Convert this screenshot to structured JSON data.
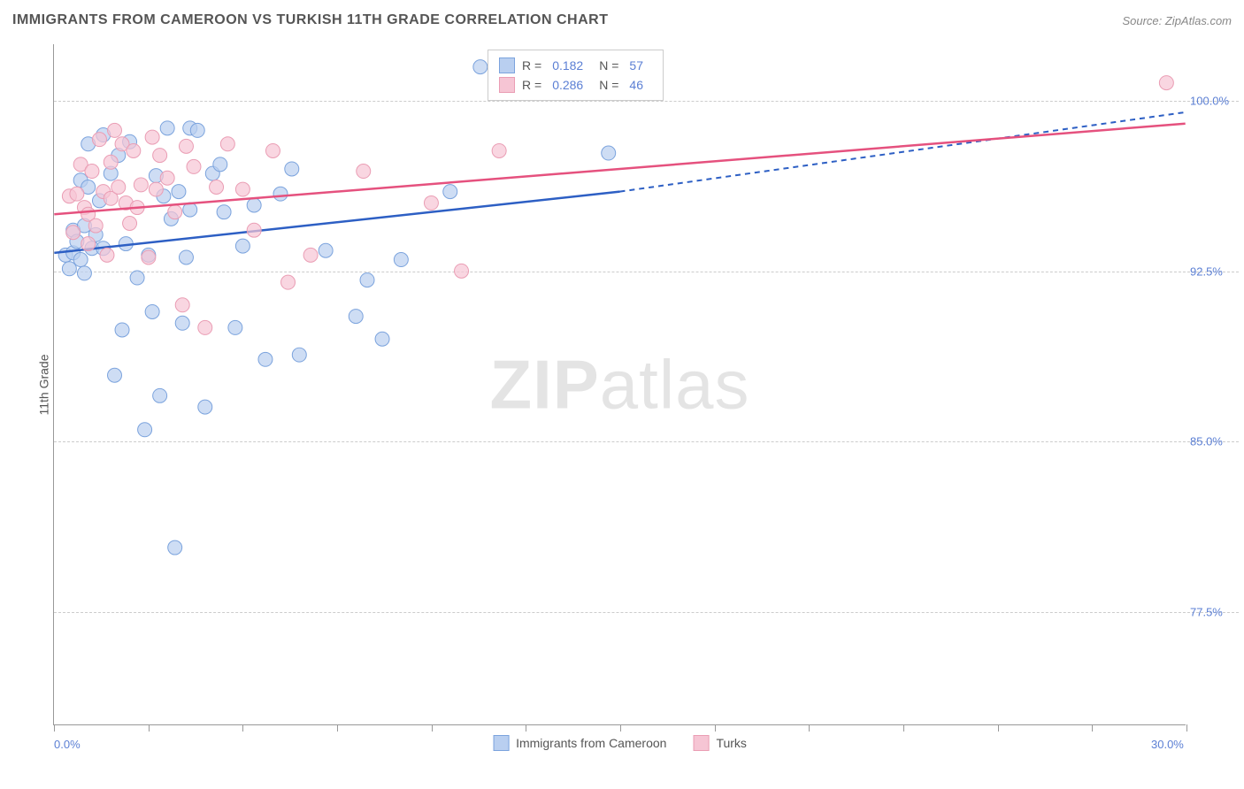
{
  "header": {
    "title": "IMMIGRANTS FROM CAMEROON VS TURKISH 11TH GRADE CORRELATION CHART",
    "source": "Source: ZipAtlas.com"
  },
  "chart": {
    "type": "scatter",
    "ylabel": "11th Grade",
    "xlim": [
      0,
      30
    ],
    "ylim": [
      72.5,
      102.5
    ],
    "xtick_positions": [
      0,
      2.5,
      5,
      7.5,
      10,
      12.5,
      15,
      17.5,
      20,
      22.5,
      25,
      27.5,
      30
    ],
    "xtick_labels": {
      "0": "0.0%",
      "30": "30.0%"
    },
    "ytick_positions": [
      77.5,
      85.0,
      92.5,
      100.0
    ],
    "ytick_labels": [
      "77.5%",
      "85.0%",
      "92.5%",
      "100.0%"
    ],
    "grid_color": "#cccccc",
    "background_color": "#ffffff",
    "axis_color": "#999999",
    "watermark": "ZIPatlas",
    "series": [
      {
        "name": "Immigrants from Cameroon",
        "color_fill": "#b9cff0",
        "color_stroke": "#7ba3dd",
        "trend_color": "#2d5fc4",
        "marker_radius": 8,
        "marker_opacity": 0.7,
        "R": "0.182",
        "N": "57",
        "trend": {
          "x1": 0,
          "y1": 93.3,
          "x2_solid": 15,
          "y2_solid": 96.0,
          "x2_dash": 30,
          "y2_dash": 99.5
        },
        "points": [
          [
            0.3,
            93.2
          ],
          [
            0.4,
            92.6
          ],
          [
            0.5,
            93.3
          ],
          [
            0.5,
            94.3
          ],
          [
            0.6,
            93.8
          ],
          [
            0.7,
            96.5
          ],
          [
            0.7,
            93.0
          ],
          [
            0.8,
            92.4
          ],
          [
            0.8,
            94.5
          ],
          [
            0.9,
            96.2
          ],
          [
            0.9,
            98.1
          ],
          [
            1.0,
            93.5
          ],
          [
            1.1,
            94.1
          ],
          [
            1.2,
            95.6
          ],
          [
            1.3,
            93.5
          ],
          [
            1.3,
            98.5
          ],
          [
            1.5,
            96.8
          ],
          [
            1.6,
            87.9
          ],
          [
            1.7,
            97.6
          ],
          [
            1.8,
            89.9
          ],
          [
            1.9,
            93.7
          ],
          [
            2.0,
            98.2
          ],
          [
            2.2,
            92.2
          ],
          [
            2.4,
            85.5
          ],
          [
            2.5,
            93.2
          ],
          [
            2.6,
            90.7
          ],
          [
            2.7,
            96.7
          ],
          [
            2.8,
            87.0
          ],
          [
            2.9,
            95.8
          ],
          [
            3.0,
            98.8
          ],
          [
            3.1,
            94.8
          ],
          [
            3.2,
            80.3
          ],
          [
            3.3,
            96.0
          ],
          [
            3.4,
            90.2
          ],
          [
            3.5,
            93.1
          ],
          [
            3.6,
            95.2
          ],
          [
            3.6,
            98.8
          ],
          [
            3.8,
            98.7
          ],
          [
            4.0,
            86.5
          ],
          [
            4.2,
            96.8
          ],
          [
            4.4,
            97.2
          ],
          [
            4.5,
            95.1
          ],
          [
            4.8,
            90.0
          ],
          [
            5.0,
            93.6
          ],
          [
            5.3,
            95.4
          ],
          [
            5.6,
            88.6
          ],
          [
            6.0,
            95.9
          ],
          [
            6.3,
            97.0
          ],
          [
            6.5,
            88.8
          ],
          [
            7.2,
            93.4
          ],
          [
            8.0,
            90.5
          ],
          [
            8.3,
            92.1
          ],
          [
            8.7,
            89.5
          ],
          [
            9.2,
            93.0
          ],
          [
            10.5,
            96.0
          ],
          [
            11.3,
            101.5
          ],
          [
            14.7,
            97.7
          ]
        ]
      },
      {
        "name": "Turks",
        "color_fill": "#f6c5d4",
        "color_stroke": "#ea9db4",
        "trend_color": "#e5517e",
        "marker_radius": 8,
        "marker_opacity": 0.7,
        "R": "0.286",
        "N": "46",
        "trend": {
          "x1": 0,
          "y1": 95.0,
          "x2_solid": 30,
          "y2_solid": 99.0,
          "x2_dash": 30,
          "y2_dash": 99.0
        },
        "points": [
          [
            0.4,
            95.8
          ],
          [
            0.5,
            94.2
          ],
          [
            0.6,
            95.9
          ],
          [
            0.7,
            97.2
          ],
          [
            0.8,
            95.3
          ],
          [
            0.9,
            93.7
          ],
          [
            0.9,
            95.0
          ],
          [
            1.0,
            96.9
          ],
          [
            1.1,
            94.5
          ],
          [
            1.2,
            98.3
          ],
          [
            1.3,
            96.0
          ],
          [
            1.4,
            93.2
          ],
          [
            1.5,
            97.3
          ],
          [
            1.5,
            95.7
          ],
          [
            1.6,
            98.7
          ],
          [
            1.7,
            96.2
          ],
          [
            1.8,
            98.1
          ],
          [
            1.9,
            95.5
          ],
          [
            2.0,
            94.6
          ],
          [
            2.1,
            97.8
          ],
          [
            2.2,
            95.3
          ],
          [
            2.3,
            96.3
          ],
          [
            2.5,
            93.1
          ],
          [
            2.6,
            98.4
          ],
          [
            2.7,
            96.1
          ],
          [
            2.8,
            97.6
          ],
          [
            3.0,
            96.6
          ],
          [
            3.2,
            95.1
          ],
          [
            3.4,
            91.0
          ],
          [
            3.5,
            98.0
          ],
          [
            3.7,
            97.1
          ],
          [
            4.0,
            90.0
          ],
          [
            4.3,
            96.2
          ],
          [
            4.6,
            98.1
          ],
          [
            5.0,
            96.1
          ],
          [
            5.3,
            94.3
          ],
          [
            5.8,
            97.8
          ],
          [
            6.2,
            92.0
          ],
          [
            6.8,
            93.2
          ],
          [
            8.2,
            96.9
          ],
          [
            10.0,
            95.5
          ],
          [
            10.8,
            92.5
          ],
          [
            11.8,
            97.8
          ],
          [
            12.6,
            101.2
          ],
          [
            14.5,
            101.0
          ],
          [
            29.5,
            100.8
          ]
        ]
      }
    ],
    "legend_top": {
      "r_label": "R  =",
      "n_label": "N  ="
    },
    "legend_bottom": [
      {
        "label": "Immigrants from Cameroon",
        "fill": "#b9cff0",
        "stroke": "#7ba3dd"
      },
      {
        "label": "Turks",
        "fill": "#f6c5d4",
        "stroke": "#ea9db4"
      }
    ]
  }
}
